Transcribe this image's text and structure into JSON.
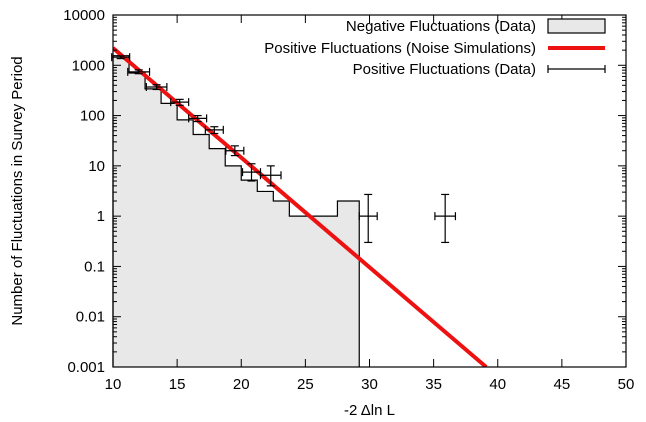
{
  "chart_data": {
    "type": "bar",
    "xlabel": "-2 Δln L",
    "ylabel": "Number of Fluctuations in Survey Period",
    "xlim": [
      10,
      50
    ],
    "ylim": [
      0.001,
      10000
    ],
    "y_scale": "log",
    "x_ticks": [
      "10",
      "15",
      "20",
      "25",
      "30",
      "35",
      "40",
      "45",
      "50"
    ],
    "y_ticks": [
      "0.001",
      "0.01",
      "0.1",
      "1",
      "10",
      "100",
      "1000",
      "10000"
    ],
    "x_tick_values": [
      10,
      15,
      20,
      25,
      30,
      35,
      40,
      45,
      50
    ],
    "y_tick_values": [
      0.001,
      0.01,
      0.1,
      1,
      10,
      100,
      1000,
      10000
    ],
    "legend_position": "top-right",
    "series": [
      {
        "name": "Negative Fluctuations (Data)",
        "kind": "histogram",
        "color": "#e8e8e8",
        "edge_color": "#000000",
        "bin_edges": [
          10,
          11.25,
          12.5,
          13.75,
          15,
          16.25,
          17.5,
          18.75,
          20,
          21.25,
          22.5,
          23.75,
          25,
          26.25,
          27.5,
          28.75,
          29.2
        ],
        "values": [
          1550,
          700,
          340,
          175,
          82,
          42,
          22,
          10,
          5.2,
          3.1,
          2.0,
          1.0,
          1.0,
          1.0,
          2.0,
          2.0
        ]
      },
      {
        "name": "Positive Fluctuations (Noise Simulations)",
        "kind": "line",
        "color": "#ee1111",
        "x": [
          10,
          39.1
        ],
        "y": [
          2200,
          0.001
        ]
      },
      {
        "name": "Positive Fluctuations (Data)",
        "kind": "errorbar",
        "color": "#000000",
        "points": [
          {
            "x": 10.6,
            "y": 1450,
            "xerr": 0.7,
            "ylo": 1360,
            "yhi": 1540
          },
          {
            "x": 12.0,
            "y": 740,
            "xerr": 0.85,
            "ylo": 680,
            "yhi": 810
          },
          {
            "x": 13.4,
            "y": 370,
            "xerr": 0.8,
            "ylo": 330,
            "yhi": 410
          },
          {
            "x": 15.2,
            "y": 185,
            "xerr": 0.7,
            "ylo": 160,
            "yhi": 210
          },
          {
            "x": 16.6,
            "y": 88,
            "xerr": 0.7,
            "ylo": 76,
            "yhi": 100
          },
          {
            "x": 17.9,
            "y": 52,
            "xerr": 0.7,
            "ylo": 44,
            "yhi": 60
          },
          {
            "x": 19.5,
            "y": 20,
            "xerr": 0.7,
            "ylo": 16,
            "yhi": 25
          },
          {
            "x": 20.8,
            "y": 7.5,
            "xerr": 0.7,
            "ylo": 5,
            "yhi": 11
          },
          {
            "x": 22.3,
            "y": 6.5,
            "xerr": 0.8,
            "ylo": 4,
            "yhi": 10
          },
          {
            "x": 29.9,
            "y": 1.0,
            "xerr": 0.7,
            "ylo": 0.3,
            "yhi": 2.7
          },
          {
            "x": 35.9,
            "y": 1.0,
            "xerr": 0.8,
            "ylo": 0.3,
            "yhi": 2.7
          }
        ]
      }
    ]
  }
}
